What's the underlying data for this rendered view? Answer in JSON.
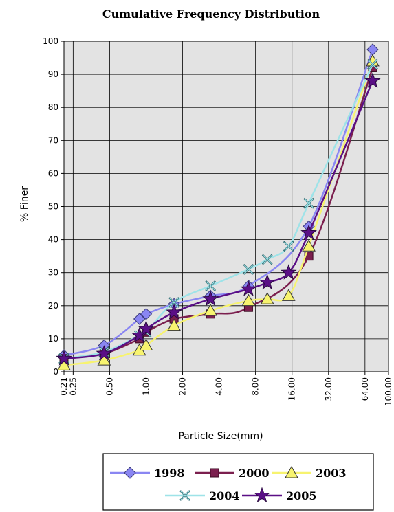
{
  "chart_data": {
    "type": "line",
    "title": "Cumulative Frequency Distribution",
    "xlabel": "Particle Size(mm)",
    "ylabel": "% Finer",
    "x_scale": "log2",
    "xlim": [
      0.21,
      100
    ],
    "ylim": [
      0,
      100
    ],
    "y_ticks": [
      0,
      10,
      20,
      30,
      40,
      50,
      60,
      70,
      80,
      90,
      100
    ],
    "x_ticks": [
      {
        "value": 0.21,
        "label": "0.21"
      },
      {
        "value": 0.25,
        "label": "0.25"
      },
      {
        "value": 0.5,
        "label": "0.50"
      },
      {
        "value": 1,
        "label": "1.00"
      },
      {
        "value": 2,
        "label": "2.00"
      },
      {
        "value": 4,
        "label": "4.00"
      },
      {
        "value": 8,
        "label": "8.00"
      },
      {
        "value": 16,
        "label": "16.00"
      },
      {
        "value": 32,
        "label": "32.00"
      },
      {
        "value": 64,
        "label": "64.00"
      },
      {
        "value": 100,
        "label": "100.00"
      }
    ],
    "grid": true,
    "legend_position": "bottom",
    "plot_background": "#e3e3e3",
    "series": [
      {
        "name": "1998",
        "color": "#8a86f2",
        "marker": "diamond",
        "x": [
          0.21,
          0.45,
          0.88,
          1.0,
          1.7,
          3.4,
          7.0,
          22,
          74
        ],
        "y": [
          5,
          8,
          16,
          17.5,
          20.5,
          23,
          26,
          44,
          97.5
        ]
      },
      {
        "name": "2000",
        "color": "#7b1f4e",
        "marker": "square",
        "x": [
          0.21,
          0.45,
          0.88,
          1.0,
          1.7,
          3.4,
          7.0,
          22,
          74
        ],
        "y": [
          4,
          5.5,
          10,
          12,
          16,
          17.5,
          19.5,
          35,
          92
        ]
      },
      {
        "name": "2003",
        "color": "#f7f36f",
        "marker": "triangle",
        "x": [
          0.21,
          0.45,
          0.88,
          1.0,
          1.7,
          3.4,
          7.0,
          10,
          15,
          22,
          74
        ],
        "y": [
          2,
          3.5,
          6.5,
          8,
          14,
          18.5,
          21.5,
          22,
          23,
          38,
          94
        ]
      },
      {
        "name": "2004",
        "color": "#9ee3e8",
        "marker": "x",
        "x": [
          0.21,
          0.45,
          0.88,
          1.0,
          1.7,
          3.4,
          7.0,
          10,
          15,
          22,
          74
        ],
        "y": [
          4,
          6,
          11,
          12,
          21,
          26,
          31,
          34,
          38,
          51,
          93
        ]
      },
      {
        "name": "2005",
        "color": "#5a0f86",
        "marker": "star",
        "x": [
          0.21,
          0.45,
          0.88,
          1.0,
          1.7,
          3.4,
          7.0,
          10,
          15,
          22,
          74
        ],
        "y": [
          4,
          5.5,
          11,
          13,
          18,
          22,
          25,
          27,
          30,
          42,
          88
        ]
      }
    ]
  }
}
